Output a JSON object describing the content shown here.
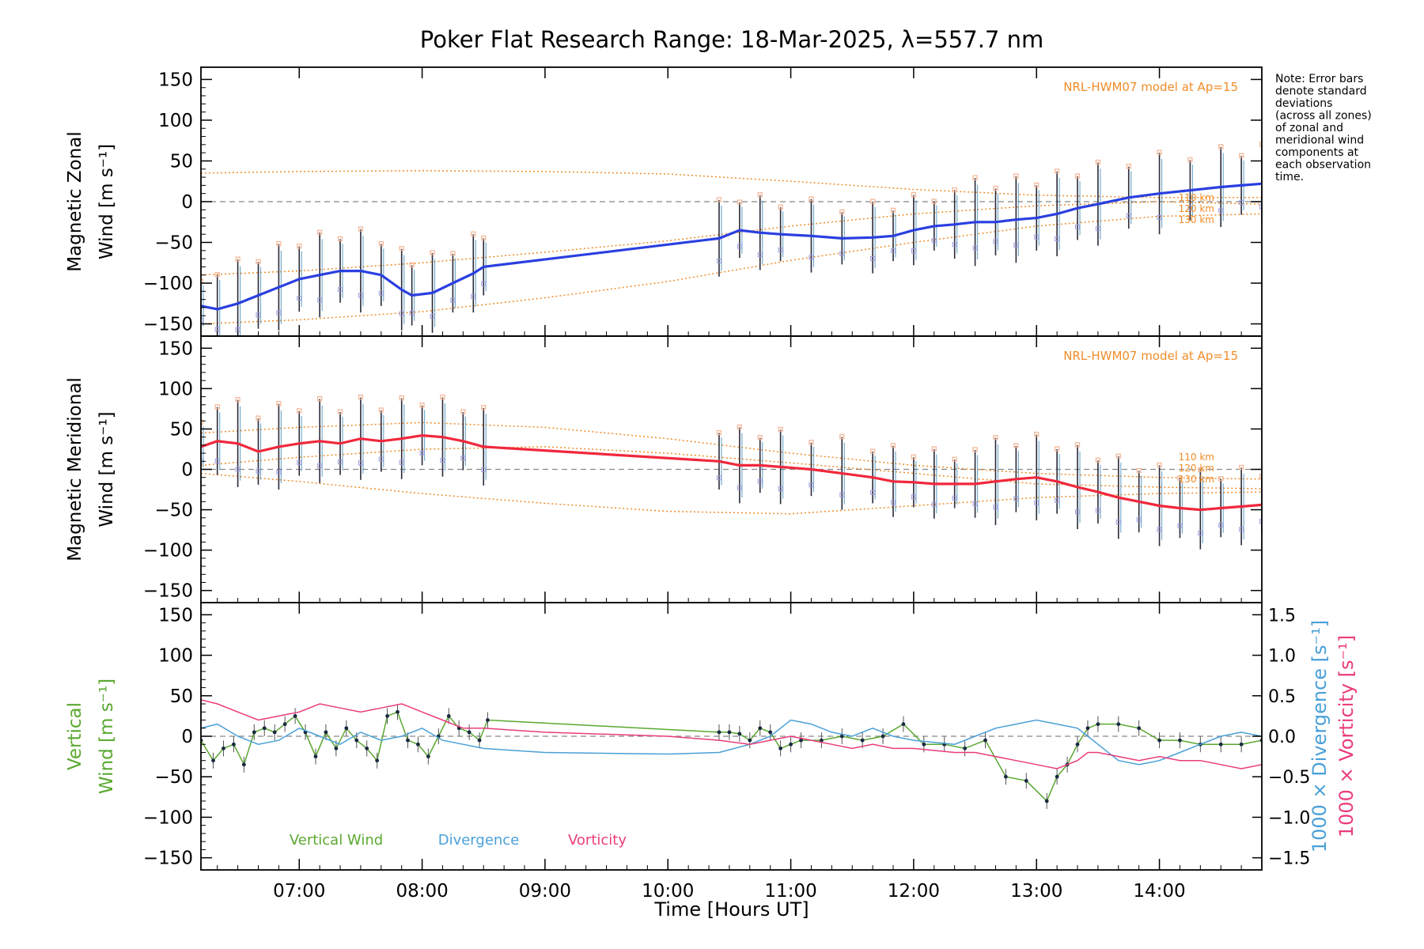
{
  "title": "Poker Flat Research Range: 18-Mar-2025, λ=557.7 nm",
  "note": [
    "Note: Error bars",
    "denote standard",
    "deviations",
    "(across all zones)",
    "of zonal and",
    "meridional wind",
    "components at",
    "each observation",
    "time."
  ],
  "xlabel": "Time [Hours UT]",
  "colors": {
    "zonal": "#2a3fe0",
    "meridional": "#f0283c",
    "vertical": "#5aa830",
    "divergence": "#4aa0d8",
    "vorticity": "#ea3c7c",
    "model": "#f08c28",
    "errorbar": "#2a2a3a",
    "zone_marker": "#9a9ae0",
    "model_marker": "#f4b898"
  },
  "chart_data": [
    {
      "type": "line",
      "panel": "zonal",
      "ylabel": [
        "Magnetic Zonal",
        "Wind [m s⁻¹]"
      ],
      "ylim": [
        -165,
        165
      ],
      "yticks": [
        -150,
        -100,
        -50,
        0,
        50,
        100,
        150
      ],
      "xlim": [
        "06:12",
        "14:50"
      ],
      "xticks": [
        "07:00",
        "08:00",
        "09:00",
        "10:00",
        "11:00",
        "12:00",
        "13:00",
        "14:00"
      ],
      "model_label": "NRL-HWM07 model at Ap=15",
      "model_alt_labels": [
        "110 km",
        "120 km",
        "130 km"
      ],
      "series": [
        {
          "role": "mean",
          "x": [
            "06:12",
            "06:20",
            "06:30",
            "06:40",
            "06:50",
            "07:00",
            "07:10",
            "07:20",
            "07:30",
            "07:40",
            "07:50",
            "07:55",
            "08:05",
            "08:15",
            "08:25",
            "08:30",
            "10:25",
            "10:35",
            "10:45",
            "10:55",
            "11:10",
            "11:25",
            "11:40",
            "11:50",
            "12:00",
            "12:10",
            "12:20",
            "12:30",
            "12:40",
            "12:50",
            "13:00",
            "13:10",
            "13:20",
            "13:30",
            "13:45",
            "14:00",
            "14:15",
            "14:30",
            "14:40",
            "14:50"
          ],
          "y": [
            -128,
            -132,
            -125,
            -115,
            -105,
            -95,
            -90,
            -85,
            -85,
            -90,
            -108,
            -115,
            -112,
            -100,
            -88,
            -80,
            -45,
            -35,
            -38,
            -40,
            -42,
            -45,
            -44,
            -42,
            -35,
            -30,
            -28,
            -25,
            -25,
            -22,
            -20,
            -15,
            -8,
            -3,
            5,
            10,
            14,
            18,
            20,
            22
          ]
        },
        {
          "role": "model",
          "altitude": "110 km",
          "x": [
            "06:12",
            "07:00",
            "08:00",
            "09:00",
            "10:00",
            "11:00",
            "12:00",
            "13:00",
            "14:00",
            "14:50"
          ],
          "y": [
            35,
            37,
            38,
            37,
            34,
            25,
            15,
            8,
            5,
            5
          ]
        },
        {
          "role": "model",
          "altitude": "120 km",
          "x": [
            "06:12",
            "07:00",
            "08:00",
            "09:00",
            "10:00",
            "11:00",
            "12:00",
            "13:00",
            "14:00",
            "14:50"
          ],
          "y": [
            -90,
            -85,
            -75,
            -62,
            -48,
            -30,
            -15,
            -5,
            0,
            -3
          ]
        },
        {
          "role": "model",
          "altitude": "130 km",
          "x": [
            "06:12",
            "07:00",
            "08:00",
            "09:00",
            "10:00",
            "11:00",
            "12:00",
            "13:00",
            "14:00",
            "14:50"
          ],
          "y": [
            -150,
            -145,
            -135,
            -118,
            -98,
            -72,
            -50,
            -30,
            -18,
            -15
          ]
        }
      ]
    },
    {
      "type": "line",
      "panel": "meridional",
      "ylabel": [
        "Magnetic Meridional",
        "Wind [m s⁻¹]"
      ],
      "ylim": [
        -165,
        165
      ],
      "yticks": [
        -150,
        -100,
        -50,
        0,
        50,
        100,
        150
      ],
      "model_label": "NRL-HWM07 model at Ap=15",
      "model_alt_labels": [
        "110 km",
        "120 km",
        "130 km"
      ],
      "series": [
        {
          "role": "mean",
          "x": [
            "06:12",
            "06:20",
            "06:30",
            "06:40",
            "06:50",
            "07:00",
            "07:10",
            "07:20",
            "07:30",
            "07:40",
            "07:50",
            "08:00",
            "08:10",
            "08:20",
            "08:30",
            "10:25",
            "10:35",
            "10:45",
            "10:55",
            "11:10",
            "11:25",
            "11:40",
            "11:50",
            "12:00",
            "12:10",
            "12:20",
            "12:30",
            "12:40",
            "12:50",
            "13:00",
            "13:10",
            "13:20",
            "13:30",
            "13:40",
            "13:50",
            "14:00",
            "14:10",
            "14:20",
            "14:30",
            "14:40",
            "14:50"
          ],
          "y": [
            28,
            35,
            32,
            22,
            28,
            32,
            35,
            32,
            38,
            35,
            38,
            42,
            40,
            35,
            28,
            10,
            5,
            5,
            3,
            0,
            -5,
            -10,
            -15,
            -16,
            -18,
            -18,
            -18,
            -15,
            -12,
            -10,
            -15,
            -22,
            -28,
            -35,
            -40,
            -45,
            -48,
            -50,
            -48,
            -46,
            -44
          ]
        },
        {
          "role": "model",
          "altitude": "110 km",
          "x": [
            "06:12",
            "07:00",
            "08:00",
            "09:00",
            "10:00",
            "11:00",
            "12:00",
            "13:00",
            "14:00",
            "14:50"
          ],
          "y": [
            45,
            52,
            58,
            52,
            38,
            20,
            5,
            -5,
            -10,
            -12
          ]
        },
        {
          "role": "model",
          "altitude": "120 km",
          "x": [
            "06:12",
            "07:00",
            "08:00",
            "09:00",
            "10:00",
            "11:00",
            "12:00",
            "13:00",
            "14:00",
            "14:50"
          ],
          "y": [
            5,
            15,
            25,
            28,
            20,
            8,
            -5,
            -18,
            -22,
            -24
          ]
        },
        {
          "role": "model",
          "altitude": "130 km",
          "x": [
            "06:12",
            "07:00",
            "08:00",
            "09:00",
            "10:00",
            "11:00",
            "12:00",
            "13:00",
            "14:00",
            "14:50"
          ],
          "y": [
            -5,
            -15,
            -30,
            -42,
            -52,
            -55,
            -45,
            -35,
            -30,
            -28
          ]
        }
      ]
    },
    {
      "type": "line",
      "panel": "vertical",
      "ylabel": [
        "Vertical",
        "Wind [m s⁻¹]"
      ],
      "ylim": [
        -165,
        165
      ],
      "yticks": [
        -150,
        -100,
        -50,
        0,
        50,
        100,
        150
      ],
      "y2label": [
        "1000 × Divergence [s⁻¹]",
        "1000 × Vorticity [s⁻¹]"
      ],
      "y2lim": [
        -1.65,
        1.65
      ],
      "y2ticks": [
        "-1.5",
        "-1.0",
        "-0.5",
        "0.0",
        "0.5",
        "1.0",
        "1.5"
      ],
      "legend": [
        "Vertical Wind",
        "Divergence",
        "Vorticity"
      ],
      "series": [
        {
          "name": "Vertical Wind",
          "axis": "left",
          "x": [
            "06:12",
            "06:18",
            "06:23",
            "06:28",
            "06:33",
            "06:38",
            "06:43",
            "06:48",
            "06:53",
            "06:58",
            "07:03",
            "07:08",
            "07:13",
            "07:18",
            "07:23",
            "07:28",
            "07:33",
            "07:38",
            "07:43",
            "07:48",
            "07:53",
            "07:58",
            "08:03",
            "08:08",
            "08:13",
            "08:18",
            "08:23",
            "08:28",
            "08:32",
            "10:25",
            "10:30",
            "10:35",
            "10:40",
            "10:45",
            "10:50",
            "10:55",
            "11:00",
            "11:05",
            "11:15",
            "11:25",
            "11:35",
            "11:45",
            "11:55",
            "12:05",
            "12:15",
            "12:25",
            "12:35",
            "12:45",
            "12:55",
            "13:05",
            "13:10",
            "13:15",
            "13:20",
            "13:25",
            "13:30",
            "13:40",
            "13:50",
            "14:00",
            "14:10",
            "14:20",
            "14:30",
            "14:40",
            "14:50"
          ],
          "y": [
            -5,
            -30,
            -15,
            -10,
            -35,
            5,
            10,
            5,
            15,
            25,
            5,
            -25,
            5,
            -15,
            10,
            -5,
            -15,
            -30,
            25,
            30,
            -5,
            -10,
            -25,
            0,
            25,
            10,
            5,
            -5,
            20,
            5,
            5,
            3,
            -5,
            10,
            5,
            -15,
            -10,
            -5,
            -5,
            0,
            -5,
            0,
            15,
            -10,
            -10,
            -15,
            -5,
            -50,
            -55,
            -80,
            -50,
            -35,
            -10,
            10,
            15,
            15,
            10,
            -5,
            -5,
            -10,
            -10,
            -10,
            -5
          ]
        },
        {
          "name": "Divergence",
          "axis": "right",
          "x": [
            "06:12",
            "06:20",
            "06:30",
            "06:40",
            "06:50",
            "07:00",
            "07:10",
            "07:20",
            "07:30",
            "07:40",
            "07:50",
            "08:00",
            "08:10",
            "08:20",
            "08:30",
            "09:00",
            "10:00",
            "10:25",
            "10:40",
            "10:50",
            "11:00",
            "11:10",
            "11:20",
            "11:30",
            "11:40",
            "11:50",
            "12:00",
            "12:20",
            "12:30",
            "12:40",
            "12:50",
            "13:00",
            "13:10",
            "13:20",
            "13:25",
            "13:30",
            "13:40",
            "13:50",
            "14:00",
            "14:10",
            "14:20",
            "14:30",
            "14:40",
            "14:50"
          ],
          "y": [
            0.1,
            0.15,
            0.0,
            -0.1,
            -0.05,
            0.1,
            0.0,
            -0.1,
            0.05,
            -0.05,
            0.0,
            0.1,
            -0.05,
            -0.1,
            -0.15,
            -0.2,
            -0.22,
            -0.2,
            -0.1,
            0.0,
            0.2,
            0.15,
            0.05,
            0.0,
            0.1,
            0.0,
            -0.05,
            -0.1,
            0.0,
            0.1,
            0.15,
            0.2,
            0.15,
            0.1,
            0.0,
            -0.1,
            -0.3,
            -0.35,
            -0.3,
            -0.2,
            -0.1,
            0.0,
            0.05,
            0.0
          ]
        },
        {
          "name": "Vorticity",
          "axis": "right",
          "x": [
            "06:12",
            "06:20",
            "06:30",
            "06:40",
            "06:50",
            "07:00",
            "07:10",
            "07:20",
            "07:30",
            "07:40",
            "07:50",
            "08:00",
            "08:10",
            "08:20",
            "08:30",
            "09:00",
            "10:00",
            "10:25",
            "10:40",
            "10:50",
            "11:00",
            "11:10",
            "11:20",
            "11:30",
            "11:40",
            "11:50",
            "12:00",
            "12:20",
            "12:30",
            "12:40",
            "12:50",
            "13:00",
            "13:10",
            "13:20",
            "13:25",
            "13:30",
            "13:40",
            "13:50",
            "14:00",
            "14:10",
            "14:20",
            "14:30",
            "14:40",
            "14:50"
          ],
          "y": [
            0.45,
            0.4,
            0.3,
            0.2,
            0.25,
            0.3,
            0.4,
            0.35,
            0.3,
            0.35,
            0.4,
            0.3,
            0.2,
            0.1,
            0.1,
            0.05,
            0.0,
            -0.05,
            -0.1,
            -0.05,
            0.0,
            -0.05,
            -0.1,
            -0.15,
            -0.1,
            -0.15,
            -0.15,
            -0.2,
            -0.2,
            -0.25,
            -0.3,
            -0.35,
            -0.4,
            -0.3,
            -0.2,
            -0.2,
            -0.25,
            -0.3,
            -0.25,
            -0.3,
            -0.3,
            -0.35,
            -0.4,
            -0.35
          ]
        }
      ]
    }
  ]
}
